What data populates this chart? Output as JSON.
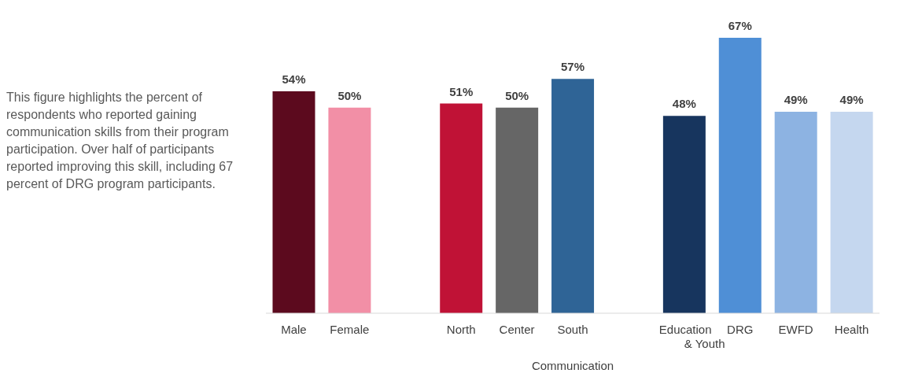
{
  "chart_data": {
    "type": "bar",
    "xlabel": "Communication",
    "categories": [
      "Male",
      "Female",
      null,
      "North",
      "Center",
      "South",
      null,
      "Education & Youth",
      "DRG",
      "EWFD",
      "Health"
    ],
    "values": [
      54,
      50,
      null,
      51,
      50,
      57,
      null,
      48,
      67,
      49,
      49
    ],
    "colors": [
      "#5c0a1e",
      "#f28fa6",
      "#ffffff",
      "#c01236",
      "#666666",
      "#2f6496",
      "#ffffff",
      "#17355e",
      "#4f8fd6",
      "#8db3e2",
      "#c5d7ef"
    ],
    "value_labels": [
      "54%",
      "50%",
      null,
      "51%",
      "50%",
      "57%",
      null,
      "48%",
      "67%",
      "49%",
      "49%"
    ],
    "annotations": [
      "This figure highlights the percent of respondents who reported gaining communication skills from their program participation. Over half of participants reported improving this skill, including 67 percent of DRG program participants."
    ]
  }
}
